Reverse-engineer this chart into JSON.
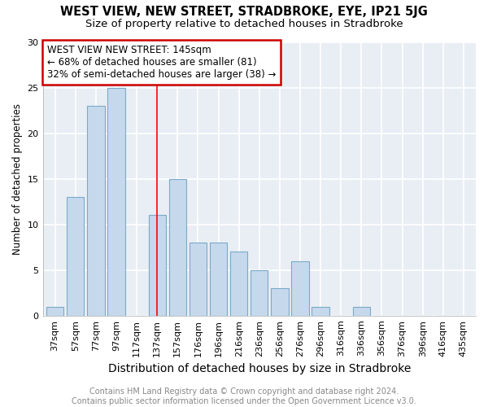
{
  "title": "WEST VIEW, NEW STREET, STRADBROKE, EYE, IP21 5JG",
  "subtitle": "Size of property relative to detached houses in Stradbroke",
  "xlabel": "Distribution of detached houses by size in Stradbroke",
  "ylabel": "Number of detached properties",
  "categories": [
    "37sqm",
    "57sqm",
    "77sqm",
    "97sqm",
    "117sqm",
    "137sqm",
    "157sqm",
    "176sqm",
    "196sqm",
    "216sqm",
    "236sqm",
    "256sqm",
    "276sqm",
    "296sqm",
    "316sqm",
    "336sqm",
    "356sqm",
    "376sqm",
    "396sqm",
    "416sqm",
    "435sqm"
  ],
  "values": [
    1,
    13,
    23,
    25,
    0,
    11,
    15,
    8,
    8,
    7,
    5,
    3,
    6,
    1,
    0,
    1,
    0,
    0,
    0,
    0,
    0
  ],
  "bar_color": "#c6d9ec",
  "bar_edge_color": "#7aaac8",
  "annotation_text": "WEST VIEW NEW STREET: 145sqm\n← 68% of detached houses are smaller (81)\n32% of semi-detached houses are larger (38) →",
  "annotation_box_color": "#ffffff",
  "annotation_box_edge": "#cc0000",
  "red_line_x": 5,
  "ylim": [
    0,
    30
  ],
  "yticks": [
    0,
    5,
    10,
    15,
    20,
    25,
    30
  ],
  "footer": "Contains HM Land Registry data © Crown copyright and database right 2024.\nContains public sector information licensed under the Open Government Licence v3.0.",
  "fig_bg_color": "#ffffff",
  "plot_bg_color": "#e8eef4",
  "grid_color": "#ffffff",
  "title_fontsize": 10.5,
  "subtitle_fontsize": 9.5,
  "xlabel_fontsize": 10,
  "ylabel_fontsize": 8.5,
  "tick_fontsize": 8,
  "footer_fontsize": 7,
  "annotation_fontsize": 8.5
}
